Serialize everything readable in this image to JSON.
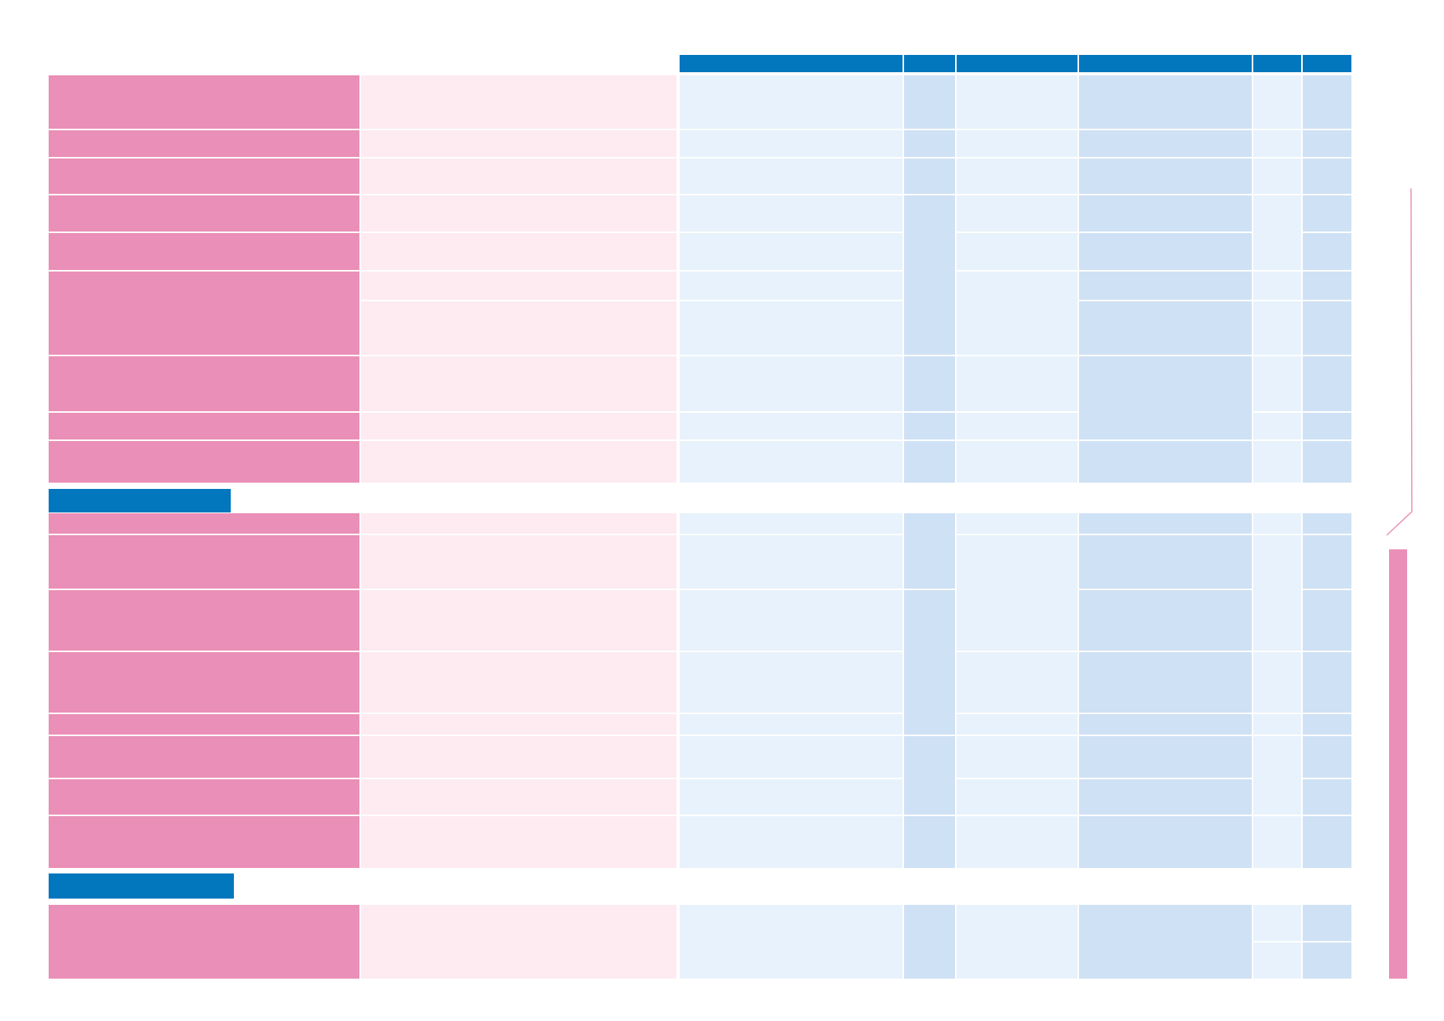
{
  "colors": {
    "pink": "#ea8fb7",
    "pink_light": "#fdebf1",
    "blue_light": "#e8f2fc",
    "blue_mid": "#cfe1f4",
    "blue": "#0277bd",
    "background": "#ffffff"
  },
  "table": {
    "header_cells": 6,
    "section_headers": 2,
    "sections": [
      {
        "rows": 10
      },
      {
        "rows": 8
      },
      {
        "rows": 1
      }
    ]
  }
}
